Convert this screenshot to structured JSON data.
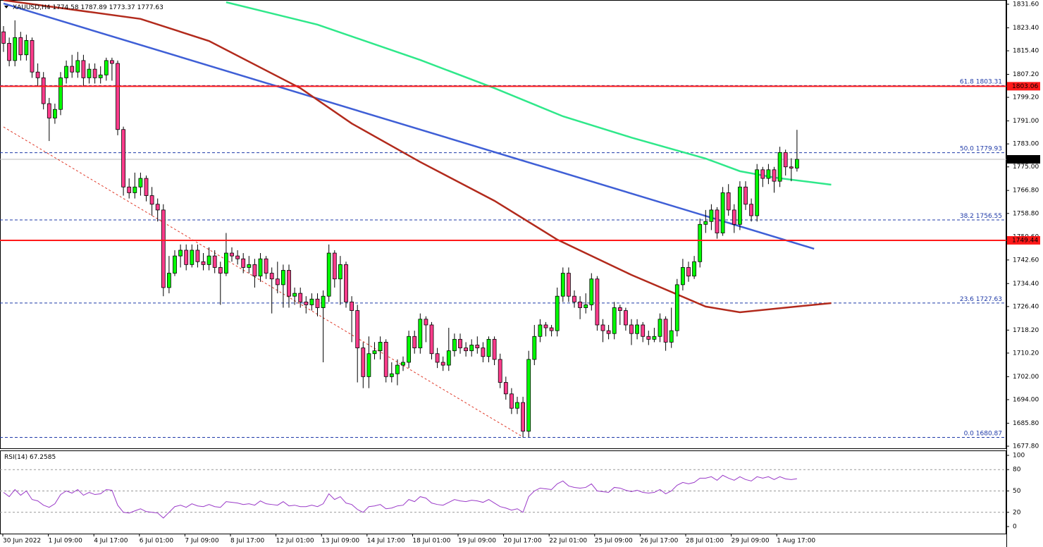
{
  "chart_data": {
    "type": "candlestick",
    "symbol": "XAUUSD,H4",
    "rsi_title": "RSI(14)",
    "bull_color": "#00ff00",
    "bear_color": "#ff3c8c",
    "ylim": [
      1677.8,
      1831.6
    ],
    "yticks": [
      {
        "value": 1831.6,
        "label": "1831.60"
      },
      {
        "value": 1823.4,
        "label": "1823.40"
      },
      {
        "value": 1815.4,
        "label": "1815.40"
      },
      {
        "value": 1807.2,
        "label": "1807.20"
      },
      {
        "value": 1799.2,
        "label": "1799.20"
      },
      {
        "value": 1791,
        "label": "1791.00"
      },
      {
        "value": 1783,
        "label": "1783.00"
      },
      {
        "value": 1775,
        "label": "1775.00"
      },
      {
        "value": 1766.8,
        "label": "1766.80"
      },
      {
        "value": 1758.8,
        "label": "1758.80"
      },
      {
        "value": 1750.6,
        "label": "1750.60"
      },
      {
        "value": 1742.6,
        "label": "1742.60"
      },
      {
        "value": 1734.4,
        "label": "1734.40"
      },
      {
        "value": 1726.4,
        "label": "1726.40"
      },
      {
        "value": 1718.2,
        "label": "1718.20"
      },
      {
        "value": 1710.2,
        "label": "1710.20"
      },
      {
        "value": 1702,
        "label": "1702.00"
      },
      {
        "value": 1694,
        "label": "1694.00"
      },
      {
        "value": 1685.8,
        "label": "1685.80"
      },
      {
        "value": 1677.8,
        "label": "1677.80"
      }
    ],
    "time_labels": [
      "30 Jun 2022",
      "1 Jul 09:00",
      "4 Jul 17:00",
      "6 Jul 01:00",
      "7 Jul 09:00",
      "8 Jul 17:00",
      "12 Jul 01:00",
      "13 Jul 09:00",
      "14 Jul 17:00",
      "18 Jul 01:00",
      "19 Jul 09:00",
      "20 Jul 17:00",
      "22 Jul 01:00",
      "25 Jul 09:00",
      "26 Jul 17:00",
      "28 Jul 01:00",
      "29 Jul 09:00",
      "1 Aug 17:00"
    ],
    "candles": [
      [
        1822,
        1824,
        1815,
        1818
      ],
      [
        1818,
        1820,
        1810,
        1812
      ],
      [
        1812,
        1826,
        1810,
        1820
      ],
      [
        1820,
        1822,
        1812,
        1814
      ],
      [
        1814,
        1821,
        1812,
        1819
      ],
      [
        1819,
        1820,
        1806,
        1808
      ],
      [
        1808,
        1811,
        1803,
        1806
      ],
      [
        1806,
        1808,
        1795,
        1797
      ],
      [
        1797,
        1799,
        1784,
        1792
      ],
      [
        1792,
        1797,
        1790,
        1795
      ],
      [
        1795,
        1808,
        1793,
        1806
      ],
      [
        1806,
        1812,
        1804,
        1810
      ],
      [
        1810,
        1814,
        1806,
        1808
      ],
      [
        1808,
        1815,
        1806,
        1812
      ],
      [
        1812,
        1814,
        1803,
        1806
      ],
      [
        1806,
        1811,
        1804,
        1809
      ],
      [
        1809,
        1811,
        1804,
        1806
      ],
      [
        1806,
        1810,
        1804,
        1807
      ],
      [
        1807,
        1813,
        1805,
        1812
      ],
      [
        1812,
        1813,
        1805,
        1811
      ],
      [
        1811,
        1812,
        1786,
        1788
      ],
      [
        1788,
        1789,
        1765,
        1768
      ],
      [
        1768,
        1771,
        1764,
        1766
      ],
      [
        1766,
        1773,
        1764,
        1768
      ],
      [
        1768,
        1773,
        1765,
        1771
      ],
      [
        1771,
        1772,
        1763,
        1765
      ],
      [
        1765,
        1768,
        1758,
        1762
      ],
      [
        1762,
        1764,
        1756,
        1760
      ],
      [
        1760,
        1762,
        1730,
        1733
      ],
      [
        1733,
        1744,
        1731,
        1738
      ],
      [
        1738,
        1746,
        1737,
        1744
      ],
      [
        1744,
        1748,
        1740,
        1746
      ],
      [
        1746,
        1748,
        1739,
        1741
      ],
      [
        1741,
        1748,
        1740,
        1746
      ],
      [
        1746,
        1748,
        1740,
        1742
      ],
      [
        1742,
        1745,
        1739,
        1741
      ],
      [
        1741,
        1747,
        1739,
        1744
      ],
      [
        1744,
        1746,
        1738,
        1740
      ],
      [
        1740,
        1742,
        1727,
        1738
      ],
      [
        1738,
        1752,
        1737,
        1745
      ],
      [
        1745,
        1747,
        1742,
        1744
      ],
      [
        1744,
        1746,
        1741,
        1743
      ],
      [
        1743,
        1745,
        1738,
        1740
      ],
      [
        1740,
        1744,
        1738,
        1741
      ],
      [
        1741,
        1743,
        1733,
        1737
      ],
      [
        1737,
        1745,
        1735,
        1743
      ],
      [
        1743,
        1744,
        1736,
        1738
      ],
      [
        1738,
        1740,
        1724,
        1736
      ],
      [
        1736,
        1742,
        1731,
        1734
      ],
      [
        1734,
        1741,
        1726,
        1739
      ],
      [
        1739,
        1741,
        1726,
        1730
      ],
      [
        1730,
        1733,
        1727,
        1731
      ],
      [
        1731,
        1733,
        1726,
        1728
      ],
      [
        1728,
        1730,
        1724,
        1727
      ],
      [
        1727,
        1731,
        1725,
        1729
      ],
      [
        1729,
        1731,
        1723,
        1726
      ],
      [
        1726,
        1732,
        1707,
        1730
      ],
      [
        1730,
        1748,
        1728,
        1745
      ],
      [
        1745,
        1746,
        1733,
        1736
      ],
      [
        1736,
        1744,
        1727,
        1741
      ],
      [
        1741,
        1742,
        1726,
        1728
      ],
      [
        1728,
        1730,
        1714,
        1725
      ],
      [
        1725,
        1727,
        1700,
        1712
      ],
      [
        1712,
        1714,
        1698,
        1702
      ],
      [
        1702,
        1716,
        1698,
        1710
      ],
      [
        1710,
        1714,
        1708,
        1711
      ],
      [
        1711,
        1716,
        1708,
        1714
      ],
      [
        1714,
        1715,
        1700,
        1702
      ],
      [
        1702,
        1707,
        1700,
        1703
      ],
      [
        1703,
        1708,
        1699,
        1706
      ],
      [
        1706,
        1709,
        1704,
        1707
      ],
      [
        1707,
        1718,
        1705,
        1716
      ],
      [
        1716,
        1718,
        1710,
        1712
      ],
      [
        1712,
        1724,
        1710,
        1722
      ],
      [
        1722,
        1723,
        1714,
        1720
      ],
      [
        1720,
        1721,
        1708,
        1710
      ],
      [
        1710,
        1712,
        1705,
        1707
      ],
      [
        1707,
        1709,
        1704,
        1706
      ],
      [
        1706,
        1719,
        1704,
        1711
      ],
      [
        1711,
        1717,
        1709,
        1715
      ],
      [
        1715,
        1717,
        1710,
        1712
      ],
      [
        1712,
        1714,
        1709,
        1711
      ],
      [
        1711,
        1715,
        1709,
        1713
      ],
      [
        1713,
        1716,
        1710,
        1712
      ],
      [
        1712,
        1714,
        1707,
        1709
      ],
      [
        1709,
        1716,
        1707,
        1715
      ],
      [
        1715,
        1716,
        1706,
        1708
      ],
      [
        1708,
        1710,
        1698,
        1700
      ],
      [
        1700,
        1702,
        1694,
        1696
      ],
      [
        1696,
        1698,
        1689,
        1691
      ],
      [
        1691,
        1695,
        1689,
        1693
      ],
      [
        1693,
        1695,
        1680.87,
        1683
      ],
      [
        1683,
        1711,
        1681,
        1708
      ],
      [
        1708,
        1720,
        1706,
        1716
      ],
      [
        1716,
        1722,
        1714,
        1720
      ],
      [
        1720,
        1721,
        1716,
        1719
      ],
      [
        1719,
        1720,
        1716,
        1718
      ],
      [
        1718,
        1733,
        1716,
        1730
      ],
      [
        1730,
        1740,
        1728,
        1738
      ],
      [
        1738,
        1740,
        1728,
        1730
      ],
      [
        1730,
        1732,
        1726,
        1728
      ],
      [
        1728,
        1730,
        1722,
        1726
      ],
      [
        1726,
        1731,
        1724,
        1727
      ],
      [
        1727,
        1738,
        1725,
        1736
      ],
      [
        1736,
        1737,
        1718,
        1720
      ],
      [
        1720,
        1722,
        1714,
        1718
      ],
      [
        1718,
        1720,
        1715,
        1717
      ],
      [
        1717,
        1728,
        1715,
        1726
      ],
      [
        1726,
        1727,
        1720,
        1725
      ],
      [
        1725,
        1726,
        1718,
        1720
      ],
      [
        1720,
        1722,
        1713,
        1717
      ],
      [
        1717,
        1722,
        1715,
        1720
      ],
      [
        1720,
        1721,
        1714,
        1716
      ],
      [
        1716,
        1718,
        1713,
        1715
      ],
      [
        1715,
        1719,
        1714,
        1716
      ],
      [
        1716,
        1724,
        1714,
        1722
      ],
      [
        1722,
        1723,
        1711,
        1714
      ],
      [
        1714,
        1726,
        1712,
        1718
      ],
      [
        1718,
        1736,
        1716,
        1734
      ],
      [
        1734,
        1743,
        1732,
        1740
      ],
      [
        1740,
        1742,
        1735,
        1737
      ],
      [
        1737,
        1744,
        1736,
        1742
      ],
      [
        1742,
        1757,
        1740,
        1755
      ],
      [
        1755,
        1760,
        1752,
        1756
      ],
      [
        1756,
        1762,
        1753,
        1760
      ],
      [
        1760,
        1761,
        1750,
        1752
      ],
      [
        1752,
        1768,
        1751,
        1766
      ],
      [
        1766,
        1769,
        1758,
        1760
      ],
      [
        1760,
        1762,
        1752,
        1755
      ],
      [
        1755,
        1770,
        1753,
        1768
      ],
      [
        1768,
        1770,
        1760,
        1762
      ],
      [
        1762,
        1764,
        1756,
        1758
      ],
      [
        1758,
        1776,
        1756,
        1774
      ],
      [
        1774,
        1775,
        1768,
        1771
      ],
      [
        1771,
        1776,
        1769,
        1774
      ],
      [
        1774,
        1775,
        1766,
        1770
      ],
      [
        1770,
        1782,
        1768,
        1780
      ],
      [
        1780,
        1781,
        1772,
        1775
      ],
      [
        1775,
        1778,
        1770,
        1774.58
      ],
      [
        1774.58,
        1787.89,
        1773.37,
        1777.63
      ]
    ],
    "indicators": [
      {
        "color": "#3f5fd6",
        "x": [
          0,
          142
        ],
        "values": [
          1831.85,
          1746.5
        ]
      },
      {
        "color": "#e03a2a",
        "dashed": true,
        "x": [
          0,
          91
        ],
        "values": [
          1788.9,
          1681
        ]
      },
      {
        "color": "#b22a1c",
        "x": [
          0,
          24,
          36,
          52,
          61,
          73,
          86,
          97,
          110,
          123,
          129,
          145
        ],
        "values": [
          1833,
          1826.5,
          1818.8,
          1802.4,
          1790.1,
          1776.7,
          1763.2,
          1749.7,
          1737.4,
          1726.4,
          1724.4,
          1727.6
        ]
      },
      {
        "color": "#2fe88a",
        "x": [
          39,
          55,
          73,
          86,
          98,
          110,
          123,
          129,
          135,
          145
        ],
        "values": [
          1832.3,
          1824.5,
          1812.2,
          1802.4,
          1792.6,
          1785.2,
          1777.9,
          1773.5,
          1771.3,
          1768.8
        ]
      }
    ],
    "fib_levels": [
      {
        "ratio": "61.8",
        "value": 1803.31
      },
      {
        "ratio": "50.0",
        "value": 1779.93
      },
      {
        "ratio": "38.2",
        "value": 1756.55
      },
      {
        "ratio": "23.6",
        "value": 1727.63
      },
      {
        "ratio": "0.0",
        "value": 1680.87
      }
    ],
    "fib_color": "#1f3aa8",
    "levels": [
      1803.06,
      1749.44
    ],
    "level_color": "#ff1a1a",
    "rsi": {
      "ylim": [
        0,
        100
      ],
      "yticks": [
        100,
        80,
        50,
        20,
        0
      ],
      "levels": [
        80,
        50,
        20
      ],
      "color": "#9a3ac8",
      "values": [
        48,
        42,
        52,
        44,
        50,
        38,
        36,
        30,
        27,
        32,
        45,
        50,
        47,
        52,
        44,
        48,
        45,
        46,
        52,
        51,
        30,
        20,
        19,
        22,
        25,
        21,
        20,
        19,
        12,
        20,
        28,
        30,
        27,
        32,
        29,
        28,
        31,
        28,
        27,
        35,
        34,
        33,
        31,
        32,
        30,
        36,
        32,
        31,
        30,
        35,
        29,
        30,
        28,
        28,
        30,
        28,
        32,
        46,
        38,
        42,
        33,
        31,
        24,
        20,
        28,
        29,
        31,
        25,
        26,
        29,
        30,
        38,
        35,
        42,
        40,
        33,
        31,
        30,
        34,
        38,
        36,
        35,
        37,
        36,
        34,
        38,
        33,
        28,
        26,
        23,
        25,
        20,
        42,
        50,
        54,
        53,
        52,
        60,
        64,
        57,
        55,
        54,
        55,
        60,
        50,
        49,
        48,
        55,
        54,
        51,
        49,
        51,
        48,
        47,
        48,
        52,
        46,
        50,
        58,
        62,
        60,
        62,
        68,
        68,
        70,
        65,
        72,
        68,
        65,
        70,
        66,
        64,
        70,
        68,
        70,
        66,
        70,
        67,
        66,
        67.2585
      ]
    }
  }
}
